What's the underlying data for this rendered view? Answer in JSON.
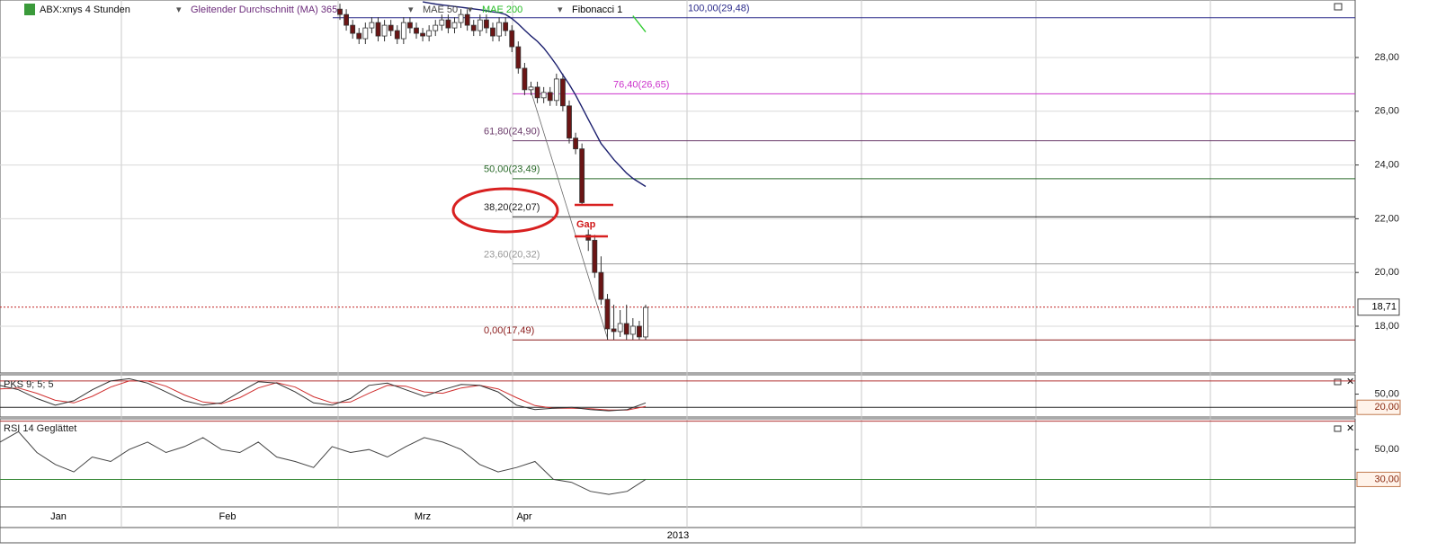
{
  "chart_data": {
    "type": "candlestick",
    "title": "ABX:xnys 4 Stunden",
    "series": [
      {
        "name": "Gleitender Durchschnitt (MA) 365",
        "color": "#1b1f6e",
        "text_color": "#6b2a7a",
        "values": [
          null,
          null,
          null,
          null,
          null,
          null,
          null,
          null,
          null,
          null,
          null,
          null,
          null,
          30.07,
          30.03,
          29.99,
          29.96,
          29.93,
          29.9,
          29.87,
          29.84,
          29.81,
          29.78,
          29.74,
          29.7,
          29.67,
          29.6,
          29.45,
          29.25,
          29.02,
          28.8,
          28.6,
          28.35,
          28.05,
          27.72,
          27.35,
          27.0,
          26.6,
          26.15,
          25.7,
          25.25,
          24.8,
          24.5,
          24.2,
          23.95,
          23.7,
          23.5,
          23.35,
          23.2
        ]
      },
      {
        "name": "MAE 50",
        "color": "#444444",
        "text_color": "#444444"
      },
      {
        "name": "MAE 200",
        "color": "#33cc33",
        "text_color": "#22bb22",
        "values": [
          null,
          null,
          null,
          null,
          null,
          null,
          null,
          null,
          null,
          null,
          null,
          null,
          null,
          null,
          null,
          null,
          null,
          null,
          null,
          null,
          null,
          null,
          null,
          null,
          null,
          null,
          null,
          null,
          null,
          null,
          null,
          null,
          null,
          null,
          null,
          null,
          null,
          null,
          null,
          null,
          null,
          null,
          null,
          null,
          null,
          null,
          29.55,
          29.25,
          28.95
        ]
      },
      {
        "name": "Fibonacci 1",
        "color": "#000000",
        "text_color": "#000000"
      }
    ],
    "open": [
      29.8,
      29.6,
      29.2,
      28.9,
      28.7,
      29.1,
      29.3,
      28.8,
      29.2,
      29.0,
      28.7,
      29.3,
      29.1,
      28.9,
      28.8,
      29.0,
      29.2,
      29.4,
      29.1,
      29.3,
      29.6,
      29.2,
      29.0,
      29.4,
      29.1,
      28.8,
      29.3,
      29.0,
      28.4,
      27.6,
      26.8,
      26.9,
      26.5,
      26.7,
      26.4,
      27.2,
      26.2,
      25.0,
      24.6,
      21.4,
      21.2,
      20.0,
      19.0,
      17.9,
      17.8,
      18.1,
      17.7,
      18.0,
      17.6
    ],
    "high": [
      30.0,
      29.8,
      29.4,
      29.1,
      29.3,
      29.5,
      29.5,
      29.4,
      29.4,
      29.2,
      29.5,
      29.5,
      29.3,
      29.1,
      29.2,
      29.4,
      29.6,
      29.6,
      29.5,
      29.8,
      29.8,
      29.4,
      29.6,
      29.6,
      29.3,
      29.5,
      29.5,
      29.2,
      28.6,
      27.8,
      27.1,
      27.1,
      26.9,
      26.9,
      27.4,
      27.4,
      26.4,
      25.2,
      24.8,
      21.6,
      21.4,
      20.6,
      19.2,
      18.8,
      18.6,
      18.8,
      18.3,
      18.2,
      18.8
    ],
    "low": [
      29.4,
      29.0,
      28.7,
      28.5,
      28.5,
      28.9,
      28.6,
      28.6,
      28.8,
      28.5,
      28.5,
      28.9,
      28.7,
      28.6,
      28.6,
      28.8,
      29.0,
      28.9,
      28.9,
      29.1,
      29.0,
      28.8,
      28.8,
      28.9,
      28.6,
      28.6,
      28.8,
      28.2,
      27.4,
      26.6,
      26.6,
      26.3,
      26.3,
      26.2,
      26.2,
      26.0,
      24.8,
      24.4,
      22.5,
      20.8,
      19.8,
      18.8,
      17.5,
      17.5,
      17.6,
      17.5,
      17.5,
      17.5,
      17.5
    ],
    "close": [
      29.6,
      29.2,
      28.9,
      28.7,
      29.1,
      29.3,
      28.8,
      29.2,
      29.0,
      28.7,
      29.3,
      29.1,
      28.9,
      28.8,
      29.0,
      29.2,
      29.4,
      29.1,
      29.3,
      29.6,
      29.2,
      29.0,
      29.4,
      29.1,
      28.8,
      29.3,
      29.0,
      28.4,
      27.6,
      26.8,
      26.9,
      26.5,
      26.7,
      26.4,
      27.2,
      26.2,
      25.0,
      24.6,
      22.6,
      21.2,
      20.0,
      19.0,
      17.9,
      17.8,
      18.1,
      17.7,
      18.0,
      17.6,
      18.7
    ],
    "ylim": [
      16.26,
      30.14
    ],
    "yticks": [
      {
        "value": 18,
        "label": "18,00"
      },
      {
        "value": 20,
        "label": "20,00"
      },
      {
        "value": 22,
        "label": "22,00"
      },
      {
        "value": 24,
        "label": "24,00"
      },
      {
        "value": 26,
        "label": "26,00"
      },
      {
        "value": 28,
        "label": "28,00"
      }
    ],
    "last": {
      "value": 18.71,
      "label": "18,71"
    },
    "fibonacci": [
      {
        "value": 29.48,
        "label": "100,00(29,48)",
        "color": "#2a2a8a"
      },
      {
        "value": 26.65,
        "label": "76,40(26,65)",
        "color": "#cc33cc"
      },
      {
        "value": 24.9,
        "label": "61,80(24,90)",
        "color": "#6a3a6a"
      },
      {
        "value": 23.49,
        "label": "50,00(23,49)",
        "color": "#2a6a2a"
      },
      {
        "value": 22.07,
        "label": "38,20(22,07)",
        "color": "#222222"
      },
      {
        "value": 20.32,
        "label": "23,60(20,32)",
        "color": "#999999"
      },
      {
        "value": 17.49,
        "label": "0,00(17,49)",
        "color": "#8a1a1a"
      }
    ],
    "annotation": "Gap",
    "x_labels": [
      "Jan",
      "Feb",
      "Mrz",
      "Apr"
    ],
    "year": "2013",
    "pks": {
      "title": "PKS 9; 5; 5",
      "ylim": [
        0,
        92
      ],
      "yticks": [
        {
          "value": 20,
          "label": "20,00"
        },
        {
          "value": 50,
          "label": "50,00"
        }
      ],
      "levels": [
        80,
        20
      ],
      "k": [
        70,
        60,
        40,
        25,
        35,
        60,
        80,
        85,
        75,
        55,
        35,
        25,
        30,
        55,
        78,
        75,
        55,
        30,
        25,
        40,
        70,
        75,
        60,
        45,
        60,
        72,
        70,
        55,
        25,
        15,
        18,
        20,
        15,
        12,
        15,
        30
      ],
      "d": [
        62,
        64,
        52,
        36,
        30,
        45,
        66,
        80,
        80,
        68,
        48,
        32,
        28,
        42,
        64,
        76,
        66,
        44,
        30,
        32,
        52,
        70,
        68,
        55,
        52,
        64,
        70,
        62,
        42,
        24,
        18,
        18,
        17,
        14,
        14,
        22
      ]
    },
    "rsi": {
      "title": "RSI 14 Geglättet",
      "ylim": [
        11,
        70
      ],
      "yticks": [
        {
          "value": 30,
          "label": "30,00"
        },
        {
          "value": 50,
          "label": "50,00"
        }
      ],
      "levels": [
        69,
        30
      ],
      "values": [
        55,
        62,
        48,
        40,
        35,
        45,
        42,
        50,
        55,
        48,
        52,
        58,
        50,
        48,
        55,
        45,
        42,
        38,
        52,
        48,
        50,
        45,
        52,
        58,
        55,
        50,
        40,
        35,
        38,
        42,
        30,
        28,
        22,
        20,
        22,
        30
      ]
    }
  }
}
